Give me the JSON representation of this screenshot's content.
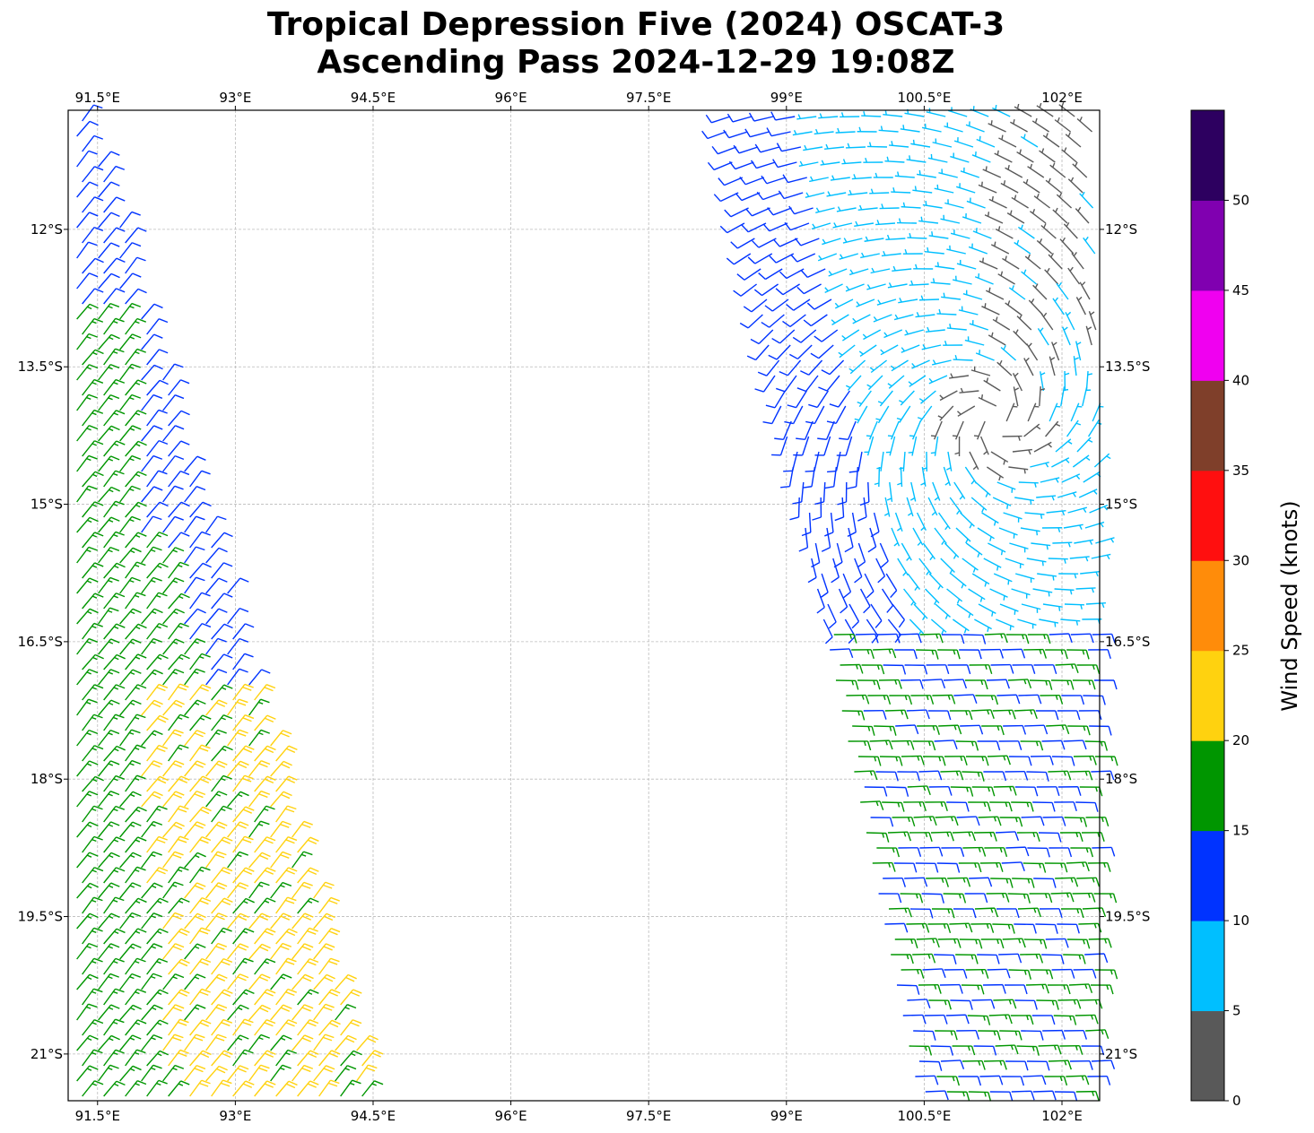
{
  "title_line1": "Tropical Depression Five (2024) OSCAT-3",
  "title_line2": "Ascending Pass 2024-12-29 19:08Z",
  "chart_data": {
    "type": "wind-barb map",
    "title": "Tropical Depression Five (2024) OSCAT-3 Ascending Pass 2024-12-29 19:08Z",
    "lon_range": [
      91.18,
      102.41
    ],
    "lat_range": [
      -21.51,
      -10.7
    ],
    "lon_ticks": [
      "91.5°E",
      "93°E",
      "94.5°E",
      "96°E",
      "97.5°E",
      "99°E",
      "100.5°E",
      "102°E"
    ],
    "lon_tick_values": [
      91.5,
      93,
      94.5,
      96,
      97.5,
      99,
      100.5,
      102
    ],
    "lat_ticks": [
      "12°S",
      "13.5°S",
      "15°S",
      "16.5°S",
      "18°S",
      "19.5°S",
      "21°S"
    ],
    "lat_tick_values": [
      -12,
      -13.5,
      -15,
      -16.5,
      -18,
      -19.5,
      -21
    ],
    "grid": true,
    "colorbar": {
      "label": "Wind Speed (knots)",
      "ticks": [
        "0",
        "5",
        "10",
        "15",
        "20",
        "25",
        "30",
        "35",
        "40",
        "45",
        "50"
      ],
      "bounds": [
        0,
        5,
        10,
        15,
        20,
        25,
        30,
        35,
        40,
        45,
        50,
        55
      ],
      "colors": [
        "#595959",
        "#00bfff",
        "#0033ff",
        "#009600",
        "#ffd20f",
        "#ff8c0a",
        "#ff0f0f",
        "#7f3f2a",
        "#f000f0",
        "#8000b0",
        "#2d0060"
      ],
      "position": "right"
    }
  }
}
